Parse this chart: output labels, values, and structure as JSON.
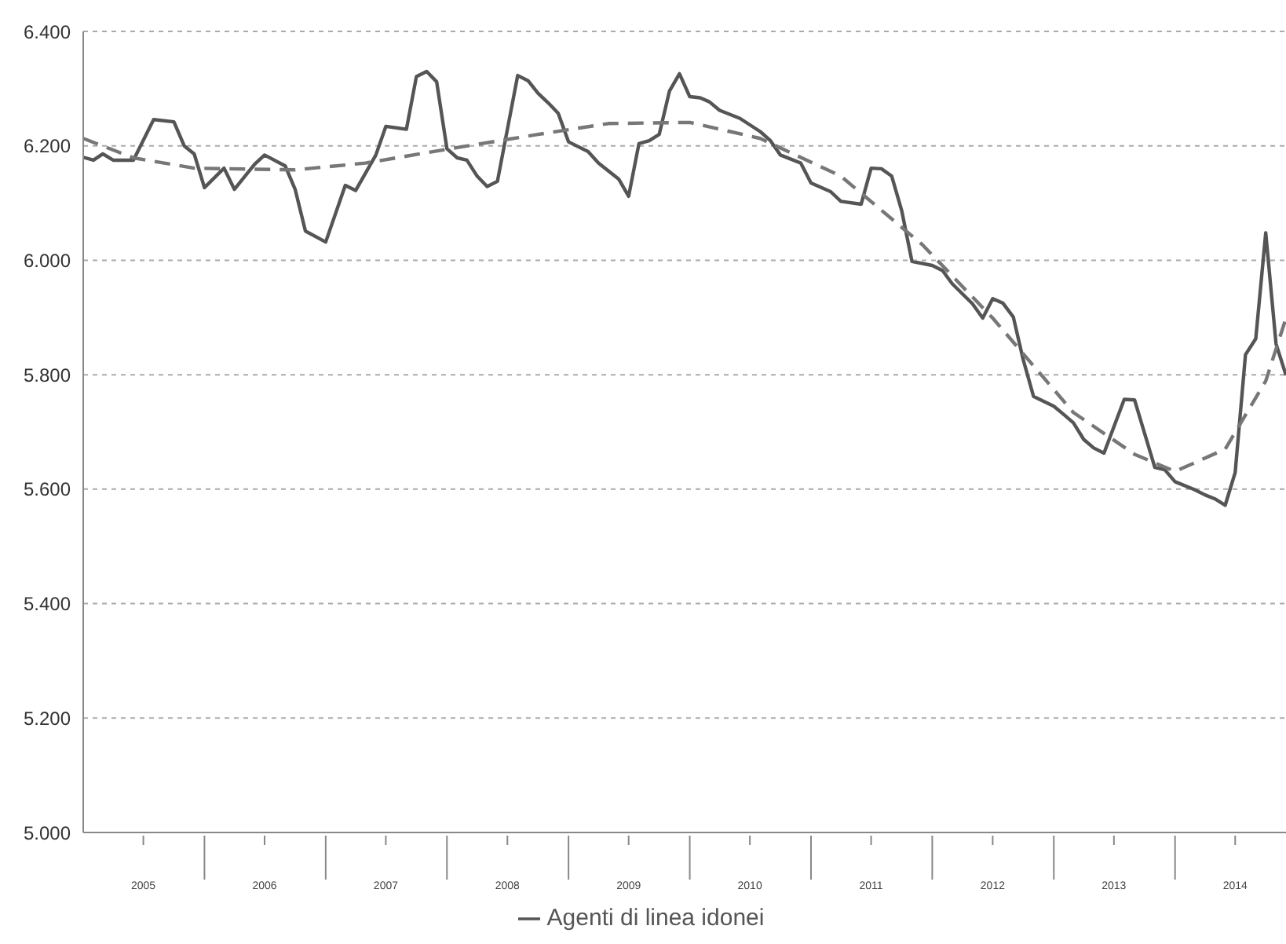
{
  "chart_data": {
    "type": "line",
    "marker": "none",
    "grid": "y",
    "legend": "bottom",
    "xlim": [
      "2005-01",
      "2014-12"
    ],
    "xticks": [
      {
        "value": "2005-07",
        "label": "2005"
      },
      {
        "value": "2006-01",
        "label": null
      },
      {
        "value": "2006-07",
        "label": "2006"
      },
      {
        "value": "2007-01",
        "label": null
      },
      {
        "value": "2007-07",
        "label": "2007"
      },
      {
        "value": "2008-01",
        "label": null
      },
      {
        "value": "2008-07",
        "label": "2008"
      },
      {
        "value": "2009-01",
        "label": null
      },
      {
        "value": "2009-07",
        "label": "2009"
      },
      {
        "value": "2010-01",
        "label": null
      },
      {
        "value": "2010-07",
        "label": "2010"
      },
      {
        "value": "2011-01",
        "label": null
      },
      {
        "value": "2011-07",
        "label": "2011"
      },
      {
        "value": "2012-01",
        "label": null
      },
      {
        "value": "2012-07",
        "label": "2012"
      },
      {
        "value": "2013-01",
        "label": null
      },
      {
        "value": "2013-07",
        "label": "2013"
      },
      {
        "value": "2014-01",
        "label": null
      },
      {
        "value": "2014-07",
        "label": "2014"
      }
    ],
    "ylim": [
      5,
      6.4
    ],
    "yticks": [
      {
        "value": 5,
        "label": "5.000"
      },
      {
        "value": 5.2,
        "label": "5.200"
      },
      {
        "value": 5.4,
        "label": "5.400"
      },
      {
        "value": 5.6,
        "label": "5.600"
      },
      {
        "value": 5.8,
        "label": "5.800"
      },
      {
        "value": 6,
        "label": "6.000"
      },
      {
        "value": 6.2,
        "label": "6.200"
      },
      {
        "value": 6.4,
        "label": "6.400"
      }
    ],
    "series": [
      {
        "name": "Agenti di linea idonei",
        "color": "#555555",
        "line_style": "solid",
        "x": [
          "2005-01",
          "2005-02",
          "2005-03",
          "2005-04",
          "2005-06",
          "2005-08",
          "2005-10",
          "2005-11",
          "2005-12",
          "2006-01",
          "2006-03",
          "2006-04",
          "2006-06",
          "2006-07",
          "2006-09",
          "2006-10",
          "2006-11",
          "2007-01",
          "2007-03",
          "2007-04",
          "2007-06",
          "2007-07",
          "2007-09",
          "2007-10",
          "2007-11",
          "2007-12",
          "2008-01",
          "2008-02",
          "2008-03",
          "2008-04",
          "2008-05",
          "2008-06",
          "2008-08",
          "2008-09",
          "2008-10",
          "2008-11",
          "2008-12",
          "2009-01",
          "2009-03",
          "2009-04",
          "2009-06",
          "2009-07",
          "2009-08",
          "2009-09",
          "2009-10",
          "2009-11",
          "2009-12",
          "2010-01",
          "2010-02",
          "2010-03",
          "2010-04",
          "2010-06",
          "2010-08",
          "2010-09",
          "2010-10",
          "2010-12",
          "2011-01",
          "2011-03",
          "2011-04",
          "2011-06",
          "2011-07",
          "2011-08",
          "2011-09",
          "2011-10",
          "2011-11",
          "2012-01",
          "2012-02",
          "2012-03",
          "2012-05",
          "2012-06",
          "2012-07",
          "2012-08",
          "2012-09",
          "2012-10",
          "2012-11",
          "2013-01",
          "2013-02",
          "2013-03",
          "2013-04",
          "2013-05",
          "2013-06",
          "2013-08",
          "2013-09",
          "2013-10",
          "2013-11",
          "2013-12",
          "2014-01",
          "2014-03",
          "2014-04",
          "2014-05",
          "2014-06",
          "2014-07",
          "2014-08",
          "2014-09",
          "2014-10",
          "2014-11",
          "2014-12"
        ],
        "values": [
          6.18,
          6.175,
          6.186,
          6.175,
          6.175,
          6.246,
          6.242,
          6.2,
          6.186,
          6.127,
          6.161,
          6.124,
          6.168,
          6.184,
          6.165,
          6.124,
          6.051,
          6.032,
          6.131,
          6.122,
          6.184,
          6.234,
          6.229,
          6.321,
          6.33,
          6.312,
          6.195,
          6.179,
          6.175,
          6.147,
          6.129,
          6.138,
          6.323,
          6.314,
          6.292,
          6.275,
          6.257,
          6.207,
          6.19,
          6.17,
          6.142,
          6.112,
          6.204,
          6.209,
          6.22,
          6.296,
          6.326,
          6.286,
          6.284,
          6.277,
          6.262,
          6.248,
          6.225,
          6.209,
          6.184,
          6.17,
          6.135,
          6.12,
          6.103,
          6.098,
          6.161,
          6.16,
          6.147,
          6.087,
          5.998,
          5.991,
          5.982,
          5.959,
          5.924,
          5.899,
          5.933,
          5.925,
          5.901,
          5.826,
          5.762,
          5.745,
          5.73,
          5.716,
          5.687,
          5.672,
          5.663,
          5.757,
          5.756,
          5.698,
          5.638,
          5.634,
          5.613,
          5.599,
          5.59,
          5.583,
          5.572,
          5.629,
          5.835,
          5.863,
          6.048,
          5.854,
          5.799
        ]
      },
      {
        "color": "#777777",
        "line_style": "dashed",
        "x": [
          "2005-01",
          "2005-06",
          "2005-12",
          "2006-10",
          "2007-05",
          "2008-02",
          "2008-10",
          "2009-05",
          "2010-01",
          "2010-08",
          "2011-04",
          "2011-12",
          "2012-07",
          "2013-03",
          "2013-09",
          "2014-01",
          "2014-06",
          "2014-10",
          "2014-12"
        ],
        "values": [
          6.213,
          6.179,
          6.161,
          6.158,
          6.17,
          6.197,
          6.22,
          6.239,
          6.241,
          6.213,
          6.147,
          6.028,
          5.899,
          5.734,
          5.661,
          5.631,
          5.67,
          5.789,
          5.899
        ]
      }
    ]
  }
}
